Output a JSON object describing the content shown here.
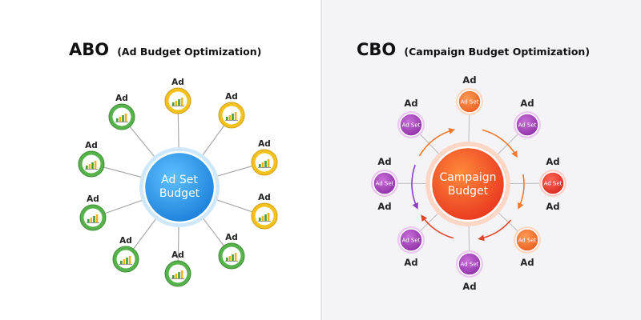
{
  "colors": {
    "left_bg": "#ffffff",
    "right_bg": "#f4f4f6",
    "abo_hub": "#1e8ee8",
    "cbo_hub": "#f2552a",
    "green": "#56b24a",
    "yellow": "#f4c21d",
    "purple": "#9a3fb5",
    "orange": "#ef6a2a",
    "red": "#e23a2f",
    "connector": "#aaaaaa"
  },
  "abo": {
    "title": "ABO",
    "subtitle": "(Ad Budget Optimization)",
    "hub_lines": [
      "Ad Set",
      "Budget"
    ],
    "ads": [
      {
        "label": "Ad",
        "color": "yellow",
        "icon": "bar-chart-icon"
      },
      {
        "label": "Ad",
        "color": "yellow",
        "icon": "bar-chart-icon"
      },
      {
        "label": "Ad",
        "color": "green",
        "icon": "bar-chart-icon"
      },
      {
        "label": "Ad",
        "color": "yellow",
        "icon": "bar-chart-icon"
      },
      {
        "label": "Ad",
        "color": "green",
        "icon": "bar-chart-icon"
      },
      {
        "label": "Ad",
        "color": "yellow",
        "icon": "bar-chart-icon"
      },
      {
        "label": "Ad",
        "color": "green",
        "icon": "bar-chart-icon"
      },
      {
        "label": "Ad",
        "color": "green",
        "icon": "bar-chart-icon"
      },
      {
        "label": "Ad",
        "color": "green",
        "icon": "bar-chart-icon"
      },
      {
        "label": "Ad",
        "color": "green",
        "icon": "bar-chart-icon"
      }
    ]
  },
  "cbo": {
    "title": "CBO",
    "subtitle": "(Campaign Budget Optimization)",
    "hub_lines": [
      "Campaign",
      "Budget"
    ],
    "adsets": [
      {
        "label": "Ad",
        "node_text": "Ad Set",
        "color": "orange"
      },
      {
        "label": "Ad",
        "node_text": "Ad Set",
        "color": "purple"
      },
      {
        "label": "Ad",
        "node_text": "Ad Set",
        "color": "purple"
      },
      {
        "label": "Ad",
        "node_text": "Ad Set",
        "color": "purple"
      },
      {
        "label": "Ad",
        "node_text": "Ad Set",
        "color": "red"
      },
      {
        "label": "Ad",
        "node_text": "Ad Set",
        "color": "purple"
      },
      {
        "label": "Ad",
        "node_text": "Ad Set",
        "color": "orange"
      },
      {
        "label": "Ad",
        "node_text": "Ad Set",
        "color": "purple"
      }
    ]
  }
}
